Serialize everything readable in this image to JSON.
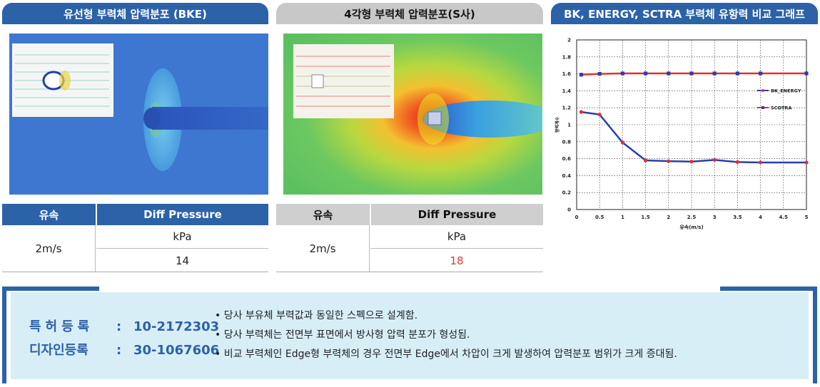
{
  "left_panel": {
    "title": "유선형 부력체 압력분포 (BKE)",
    "table": {
      "col_speed": "유속",
      "col_pressure": "Diff Pressure",
      "speed": "2m/s",
      "unit": "kPa",
      "value": "14"
    }
  },
  "middle_panel": {
    "title": "4각형 부력체 압력분포(S사)",
    "table": {
      "col_speed": "유속",
      "col_pressure": "Diff Pressure",
      "speed": "2m/s",
      "unit": "kPa",
      "value": "18"
    }
  },
  "chart_panel": {
    "title": "BK, ENERGY, SCTRA 부력체 유항력 비교 그래프"
  },
  "chart_data": {
    "type": "line",
    "xlabel": "유속(m/s)",
    "ylabel": "항력계수",
    "xlim": [
      0,
      5
    ],
    "ylim": [
      0,
      2
    ],
    "xticks": [
      "0",
      "0.5",
      "1",
      "1.5",
      "2",
      "2.5",
      "3",
      "3.5",
      "4",
      "4.5",
      "5"
    ],
    "yticks": [
      "0",
      "0.2",
      "0.4",
      "0.6",
      "0.8",
      "1",
      "1.2",
      "1.4",
      "1.6",
      "1.8",
      "2"
    ],
    "grid": true,
    "legend_position": "right",
    "series": [
      {
        "name": "BK_ENERGY",
        "color": "#2a3fa8",
        "marker_color": "#e03030",
        "x": [
          0.1,
          0.5,
          1,
          1.5,
          2,
          2.5,
          3,
          3.5,
          4,
          5
        ],
        "y": [
          1.15,
          1.12,
          0.79,
          0.58,
          0.57,
          0.565,
          0.585,
          0.56,
          0.555,
          0.555
        ]
      },
      {
        "name": "SCOTRA",
        "color": "#e03030",
        "marker_color": "#2a3fa8",
        "x": [
          0.1,
          0.5,
          1,
          1.5,
          2,
          2.5,
          3,
          3.5,
          4,
          5
        ],
        "y": [
          1.59,
          1.6,
          1.605,
          1.605,
          1.605,
          1.605,
          1.605,
          1.605,
          1.605,
          1.605
        ]
      }
    ]
  },
  "footer": {
    "patent_label": "특허등록",
    "patent_no": "10-2172303",
    "design_label": "디자인등록",
    "design_no": "30-1067606",
    "colon": ":",
    "bullets": [
      "• 당사 부유체 부력값과 동일한 스펙으로 설계함.",
      "• 당사 부력체는 전면부 표면에서 방사형 압력 분포가 형성됨.",
      "• 비교 부력체인 Edge형 부력체의 경우 전면부 Edge에서 차압이 크게 발생하여 압력분포 범위가 크게 증대됨."
    ]
  },
  "colors": {
    "accent_blue": "#2b62a8",
    "header_gray": "#c8c8c8",
    "footer_bg": "#d8eef7",
    "value_red": "#e23b1f"
  }
}
